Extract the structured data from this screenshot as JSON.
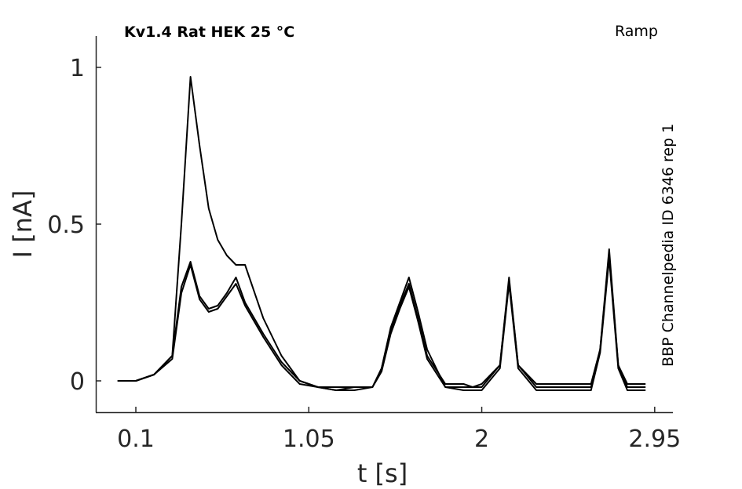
{
  "chart_data": {
    "type": "line",
    "title": "Kv1.4  Rat  HEK  25 °C",
    "protocol_label": "Ramp",
    "source_label": "BBP Channelpedia ID 6346 rep 1",
    "xlabel": "t [s]",
    "ylabel": "I [nA]",
    "xlim": [
      -0.12,
      3.05
    ],
    "ylim": [
      -0.1,
      1.1
    ],
    "xticks": [
      0.1,
      1.05,
      2,
      2.95
    ],
    "xtick_labels": [
      "0.1",
      "1.05",
      "2",
      "2.95"
    ],
    "yticks": [
      0,
      0.5,
      1
    ],
    "ytick_labels": [
      "0",
      "0.5",
      "1"
    ],
    "grid": false,
    "legend": false,
    "series": [
      {
        "x": [
          0.0,
          0.1,
          0.2,
          0.3,
          0.35,
          0.4,
          0.45,
          0.5,
          0.55,
          0.6,
          0.65,
          0.7,
          0.8,
          0.9,
          1.0,
          1.1,
          1.2,
          1.3,
          1.4,
          1.45,
          1.5,
          1.55,
          1.6,
          1.65,
          1.7,
          1.8,
          1.9,
          1.95,
          2.0,
          2.1,
          2.15,
          2.2,
          2.3,
          2.4,
          2.5,
          2.6,
          2.65,
          2.7,
          2.75,
          2.8,
          2.9
        ],
        "y": [
          0.0,
          0.0,
          0.02,
          0.08,
          0.5,
          0.97,
          0.75,
          0.55,
          0.45,
          0.4,
          0.37,
          0.37,
          0.2,
          0.08,
          0.0,
          -0.02,
          -0.02,
          -0.02,
          -0.02,
          0.04,
          0.17,
          0.25,
          0.33,
          0.22,
          0.1,
          -0.02,
          -0.02,
          -0.02,
          -0.02,
          0.05,
          0.32,
          0.05,
          -0.01,
          -0.01,
          -0.01,
          -0.01,
          0.1,
          0.42,
          0.05,
          -0.01,
          -0.01
        ]
      },
      {
        "x": [
          0.0,
          0.1,
          0.2,
          0.3,
          0.35,
          0.4,
          0.45,
          0.5,
          0.55,
          0.6,
          0.65,
          0.7,
          0.8,
          0.9,
          1.0,
          1.1,
          1.2,
          1.3,
          1.4,
          1.45,
          1.5,
          1.55,
          1.6,
          1.65,
          1.7,
          1.8,
          1.9,
          1.95,
          2.0,
          2.1,
          2.15,
          2.2,
          2.3,
          2.4,
          2.5,
          2.6,
          2.65,
          2.7,
          2.75,
          2.8,
          2.9
        ],
        "y": [
          0.0,
          0.0,
          0.02,
          0.08,
          0.3,
          0.38,
          0.27,
          0.23,
          0.24,
          0.28,
          0.33,
          0.25,
          0.15,
          0.06,
          0.0,
          -0.02,
          -0.03,
          -0.02,
          -0.02,
          0.04,
          0.16,
          0.24,
          0.31,
          0.2,
          0.08,
          -0.01,
          -0.01,
          -0.02,
          -0.01,
          0.05,
          0.33,
          0.05,
          -0.02,
          -0.02,
          -0.02,
          -0.02,
          0.1,
          0.4,
          0.05,
          -0.02,
          -0.02
        ]
      },
      {
        "x": [
          0.0,
          0.1,
          0.2,
          0.3,
          0.35,
          0.4,
          0.45,
          0.5,
          0.55,
          0.6,
          0.65,
          0.7,
          0.8,
          0.9,
          1.0,
          1.1,
          1.2,
          1.3,
          1.4,
          1.45,
          1.5,
          1.55,
          1.6,
          1.65,
          1.7,
          1.8,
          1.9,
          1.95,
          2.0,
          2.1,
          2.15,
          2.2,
          2.3,
          2.4,
          2.5,
          2.6,
          2.65,
          2.7,
          2.75,
          2.8,
          2.9
        ],
        "y": [
          0.0,
          0.0,
          0.02,
          0.07,
          0.28,
          0.37,
          0.26,
          0.22,
          0.23,
          0.27,
          0.31,
          0.24,
          0.14,
          0.05,
          -0.01,
          -0.02,
          -0.03,
          -0.03,
          -0.02,
          0.03,
          0.15,
          0.23,
          0.3,
          0.19,
          0.07,
          -0.02,
          -0.03,
          -0.03,
          -0.03,
          0.04,
          0.31,
          0.04,
          -0.03,
          -0.03,
          -0.03,
          -0.03,
          0.09,
          0.39,
          0.04,
          -0.03,
          -0.03
        ]
      }
    ]
  }
}
